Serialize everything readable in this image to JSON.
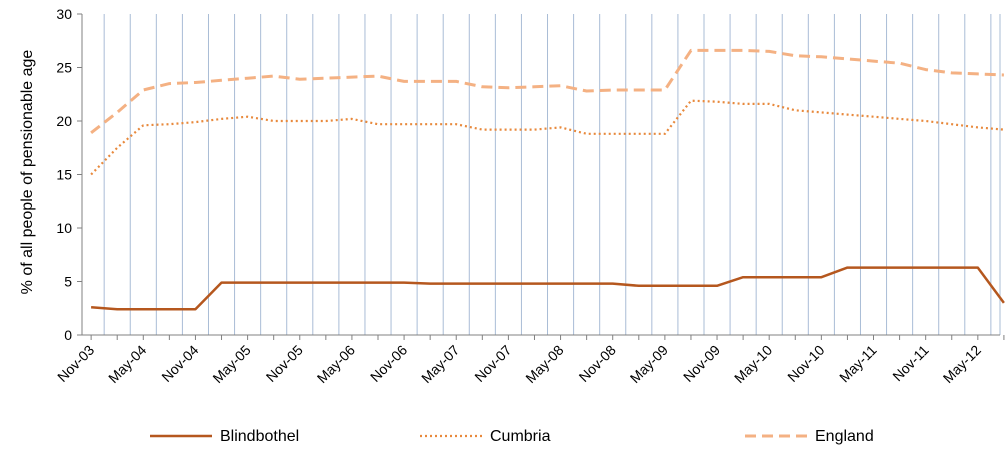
{
  "chart_data": {
    "type": "line",
    "title": "",
    "xlabel": "",
    "ylabel": "% of all people of pensionable age",
    "ylim": [
      0,
      30
    ],
    "yticks": [
      0,
      5,
      10,
      15,
      20,
      25,
      30
    ],
    "grid": "vertical",
    "legend_position": "bottom",
    "x": [
      "Nov-03",
      "Feb-04",
      "May-04",
      "Aug-04",
      "Nov-04",
      "Feb-05",
      "May-05",
      "Aug-05",
      "Nov-05",
      "Feb-06",
      "May-06",
      "Aug-06",
      "Nov-06",
      "Feb-07",
      "May-07",
      "Aug-07",
      "Nov-07",
      "Feb-08",
      "May-08",
      "Aug-08",
      "Nov-08",
      "Feb-09",
      "May-09",
      "Aug-09",
      "Nov-09",
      "Feb-10",
      "May-10",
      "Aug-10",
      "Nov-10",
      "Feb-11",
      "May-11",
      "Aug-11",
      "Nov-11",
      "Feb-12",
      "May-12",
      "Aug-12"
    ],
    "x_tick_labels": [
      "Nov-03",
      "May-04",
      "Nov-04",
      "May-05",
      "Nov-05",
      "May-06",
      "Nov-06",
      "May-07",
      "Nov-07",
      "May-08",
      "Nov-08",
      "May-09",
      "Nov-09",
      "May-10",
      "Nov-10",
      "May-11",
      "Nov-11",
      "May-12"
    ],
    "series": [
      {
        "name": "Blindbothel",
        "color": "#B5571E",
        "style": "solid",
        "values": [
          2.6,
          2.4,
          2.4,
          2.4,
          2.4,
          4.9,
          4.9,
          4.9,
          4.9,
          4.9,
          4.9,
          4.9,
          4.9,
          4.8,
          4.8,
          4.8,
          4.8,
          4.8,
          4.8,
          4.8,
          4.8,
          4.6,
          4.6,
          4.6,
          4.6,
          5.4,
          5.4,
          5.4,
          5.4,
          6.3,
          6.3,
          6.3,
          6.3,
          6.3,
          6.3,
          3.0
        ]
      },
      {
        "name": "Cumbria",
        "color": "#E8893C",
        "style": "dotted",
        "values": [
          15.0,
          17.5,
          19.6,
          19.7,
          19.9,
          20.2,
          20.4,
          20.0,
          20.0,
          20.0,
          20.2,
          19.7,
          19.7,
          19.7,
          19.7,
          19.2,
          19.2,
          19.2,
          19.4,
          18.8,
          18.8,
          18.8,
          18.8,
          21.9,
          21.8,
          21.6,
          21.6,
          21.0,
          20.8,
          20.6,
          20.4,
          20.2,
          20.0,
          19.7,
          19.4,
          19.2
        ]
      },
      {
        "name": "England",
        "color": "#F4B183",
        "style": "dashed",
        "values": [
          18.9,
          20.8,
          22.9,
          23.5,
          23.6,
          23.8,
          24.0,
          24.2,
          23.9,
          24.0,
          24.1,
          24.2,
          23.7,
          23.7,
          23.7,
          23.2,
          23.1,
          23.2,
          23.3,
          22.8,
          22.9,
          22.9,
          22.9,
          26.6,
          26.6,
          26.6,
          26.5,
          26.1,
          26.0,
          25.8,
          25.6,
          25.4,
          24.8,
          24.5,
          24.4,
          24.3
        ]
      }
    ]
  }
}
